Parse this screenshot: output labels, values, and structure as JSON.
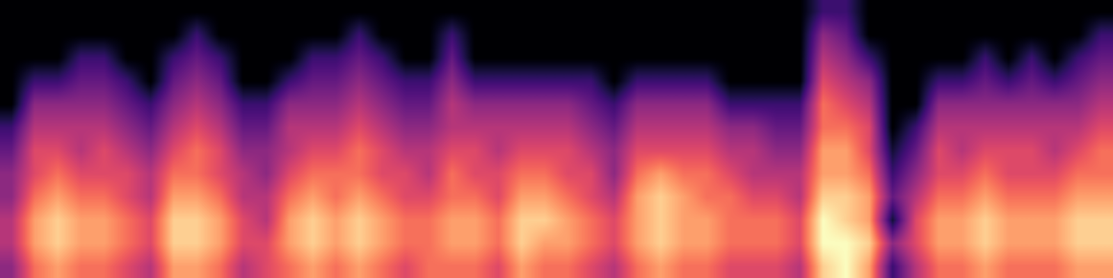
{
  "chart_data": {
    "type": "heatmap",
    "color": "magma",
    "tick_labels": false,
    "value_range": [
      0,
      10
    ],
    "frames": [
      [
        4,
        5,
        5,
        4,
        4,
        3,
        2,
        0,
        0,
        0,
        0,
        0
      ],
      [
        7,
        8,
        8,
        7,
        6,
        6,
        5,
        4,
        2,
        0,
        0,
        0
      ],
      [
        8,
        9,
        9,
        8,
        7,
        6,
        5,
        4,
        2,
        0,
        0,
        0
      ],
      [
        7,
        8,
        8,
        7,
        6,
        5,
        5,
        4,
        3,
        2,
        0,
        0
      ],
      [
        7,
        8,
        8,
        7,
        6,
        6,
        5,
        4,
        3,
        2,
        0,
        0
      ],
      [
        6,
        7,
        7,
        6,
        6,
        5,
        4,
        3,
        2,
        0,
        0,
        0
      ],
      [
        5,
        6,
        6,
        5,
        5,
        4,
        3,
        2,
        0,
        0,
        0,
        0
      ],
      [
        8,
        9,
        9,
        8,
        7,
        6,
        5,
        4,
        3,
        2,
        0,
        0
      ],
      [
        8,
        9,
        9,
        8,
        7,
        7,
        6,
        5,
        4,
        3,
        2,
        0
      ],
      [
        7,
        8,
        8,
        7,
        6,
        6,
        5,
        4,
        3,
        2,
        0,
        0
      ],
      [
        5,
        6,
        6,
        5,
        5,
        4,
        3,
        2,
        0,
        0,
        0,
        0
      ],
      [
        6,
        6,
        5,
        5,
        4,
        4,
        3,
        2,
        0,
        0,
        0,
        0
      ],
      [
        7,
        8,
        8,
        7,
        6,
        5,
        5,
        4,
        2,
        0,
        0,
        0
      ],
      [
        8,
        9,
        9,
        8,
        7,
        6,
        5,
        4,
        3,
        2,
        0,
        0
      ],
      [
        7,
        8,
        8,
        7,
        7,
        6,
        5,
        4,
        3,
        2,
        0,
        0
      ],
      [
        8,
        9,
        9,
        8,
        7,
        7,
        6,
        5,
        4,
        3,
        2,
        0
      ],
      [
        7,
        8,
        8,
        7,
        6,
        6,
        5,
        4,
        3,
        2,
        0,
        0
      ],
      [
        6,
        7,
        7,
        6,
        6,
        5,
        4,
        3,
        2,
        0,
        0,
        0
      ],
      [
        7,
        7,
        7,
        6,
        5,
        5,
        4,
        3,
        2,
        0,
        0,
        0
      ],
      [
        7,
        8,
        8,
        7,
        7,
        6,
        5,
        5,
        4,
        3,
        2,
        0
      ],
      [
        7,
        8,
        8,
        7,
        6,
        6,
        5,
        4,
        2,
        0,
        0,
        0
      ],
      [
        6,
        7,
        7,
        6,
        6,
        5,
        5,
        4,
        2,
        0,
        0,
        0
      ],
      [
        8,
        9,
        9,
        8,
        7,
        6,
        5,
        4,
        2,
        0,
        0,
        0
      ],
      [
        7,
        8,
        9,
        8,
        7,
        6,
        5,
        4,
        2,
        0,
        0,
        0
      ],
      [
        7,
        8,
        8,
        7,
        6,
        6,
        5,
        4,
        2,
        0,
        0,
        0
      ],
      [
        6,
        7,
        7,
        6,
        6,
        5,
        4,
        3,
        2,
        0,
        0,
        0
      ],
      [
        5,
        6,
        6,
        5,
        4,
        4,
        3,
        2,
        0,
        0,
        0,
        0
      ],
      [
        7,
        8,
        8,
        8,
        7,
        6,
        5,
        4,
        2,
        0,
        0,
        0
      ],
      [
        8,
        9,
        9,
        9,
        8,
        6,
        5,
        4,
        2,
        0,
        0,
        0
      ],
      [
        7,
        8,
        8,
        8,
        7,
        6,
        5,
        4,
        2,
        0,
        0,
        0
      ],
      [
        7,
        8,
        8,
        7,
        7,
        6,
        5,
        4,
        2,
        0,
        0,
        0
      ],
      [
        6,
        7,
        7,
        7,
        6,
        5,
        4,
        2,
        0,
        0,
        0,
        0
      ],
      [
        6,
        7,
        7,
        6,
        5,
        5,
        4,
        2,
        0,
        0,
        0,
        0
      ],
      [
        6,
        7,
        7,
        6,
        5,
        4,
        3,
        2,
        0,
        0,
        0,
        0
      ],
      [
        5,
        6,
        6,
        5,
        5,
        4,
        3,
        2,
        0,
        0,
        0,
        0
      ],
      [
        9,
        10,
        10,
        9,
        8,
        8,
        7,
        7,
        6,
        5,
        4,
        2
      ],
      [
        10,
        10,
        9,
        9,
        8,
        8,
        7,
        6,
        5,
        4,
        3,
        2
      ],
      [
        8,
        9,
        8,
        8,
        7,
        6,
        6,
        5,
        4,
        2,
        0,
        0
      ],
      [
        2,
        4,
        1,
        3,
        2,
        1,
        0,
        0,
        0,
        0,
        0,
        0
      ],
      [
        5,
        6,
        6,
        5,
        4,
        3,
        2,
        0,
        0,
        0,
        0,
        0
      ],
      [
        7,
        8,
        8,
        7,
        6,
        6,
        5,
        4,
        2,
        0,
        0,
        0
      ],
      [
        7,
        8,
        8,
        7,
        6,
        5,
        5,
        4,
        2,
        0,
        0,
        0
      ],
      [
        8,
        9,
        9,
        8,
        7,
        6,
        5,
        4,
        3,
        2,
        0,
        0
      ],
      [
        7,
        8,
        8,
        7,
        6,
        6,
        5,
        4,
        2,
        0,
        0,
        0
      ],
      [
        7,
        8,
        8,
        7,
        6,
        6,
        5,
        4,
        3,
        2,
        0,
        0
      ],
      [
        7,
        8,
        8,
        7,
        6,
        5,
        5,
        4,
        2,
        0,
        0,
        0
      ],
      [
        8,
        9,
        9,
        8,
        7,
        6,
        5,
        4,
        3,
        2,
        0,
        0
      ],
      [
        8,
        9,
        9,
        8,
        7,
        7,
        6,
        5,
        4,
        3,
        2,
        0
      ]
    ]
  }
}
